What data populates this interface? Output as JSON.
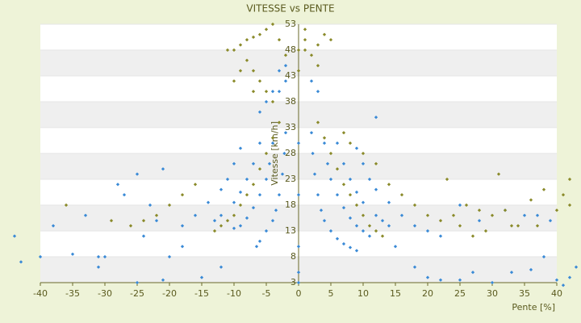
{
  "chart_data": {
    "type": "scatter",
    "title": "VITESSE vs PENTE",
    "x_label": "Pente [%]",
    "y_label": "Vitesse [km/h]",
    "xlim": [
      -40,
      40
    ],
    "xticks": [
      -40,
      -35,
      -30,
      -25,
      -20,
      -15,
      -10,
      -5,
      0,
      5,
      10,
      15,
      20,
      25,
      30,
      35,
      40
    ],
    "ylim": [
      3,
      53
    ],
    "yticks": [
      3,
      8,
      13,
      18,
      23,
      28,
      33,
      38,
      43,
      48,
      53
    ],
    "grid": true,
    "series": [
      {
        "color": "#3a8ad6",
        "x": [
          2,
          2.2,
          2.5,
          3,
          3.5,
          4,
          5,
          6,
          7,
          8,
          9,
          4,
          4.5,
          5,
          6,
          7,
          8,
          9,
          10,
          11,
          6,
          7,
          8,
          9,
          10,
          12,
          13,
          14,
          9,
          10,
          11,
          12,
          14,
          16,
          18,
          20,
          12,
          15,
          18,
          20,
          22,
          25,
          27,
          30,
          33,
          36,
          38,
          40,
          41,
          42,
          43,
          22,
          25,
          28,
          32,
          35,
          37,
          39,
          -2,
          -2.2,
          -2.5,
          -3,
          -3.5,
          -4,
          -5,
          -6,
          -6.5,
          -4,
          -4.5,
          -5,
          -6,
          -7,
          -8,
          -9,
          -10,
          -6,
          -7,
          -8,
          -9,
          -10,
          -12,
          -13,
          -9,
          -10,
          -11,
          -12,
          -14,
          -16,
          -18,
          -2,
          -3,
          -4,
          -5,
          -6,
          -3,
          -2,
          2,
          3,
          -44,
          -43,
          -40,
          -38,
          -35,
          -33,
          -31,
          -31,
          -30,
          -28,
          -25,
          -25,
          -24,
          -22,
          -21,
          -21,
          -20,
          -18,
          -15,
          -12,
          -27,
          -23,
          0,
          0,
          0,
          0,
          0
        ],
        "values": [
          32,
          28,
          24,
          20,
          17,
          15,
          13,
          11.5,
          10.5,
          9.8,
          9.2,
          30,
          26,
          23,
          20,
          17.5,
          15.5,
          14,
          13,
          12,
          30,
          26,
          23,
          20.5,
          18.5,
          16,
          15,
          14,
          29,
          26,
          23,
          21,
          18.5,
          16,
          14,
          13,
          35,
          10,
          6,
          4,
          3.5,
          3.5,
          5,
          3,
          5,
          5.5,
          8,
          3.5,
          2.5,
          4,
          6,
          12,
          18,
          15,
          17,
          16,
          16,
          15,
          32,
          28,
          24,
          20,
          17,
          15,
          13,
          11,
          10,
          30,
          26,
          23,
          20,
          17.5,
          15.5,
          14,
          13.5,
          30,
          26,
          23,
          20.5,
          18.5,
          16,
          15,
          29,
          26,
          23,
          21,
          18.5,
          16,
          14,
          45,
          44,
          40,
          38,
          36,
          40,
          42,
          42,
          40,
          12,
          7,
          8,
          14,
          8.5,
          16,
          6,
          8,
          8,
          22,
          24,
          3,
          12,
          15,
          25,
          3.5,
          8,
          10,
          4,
          6,
          20,
          18,
          3,
          5,
          10,
          20,
          30
        ]
      },
      {
        "color": "#8a8a2a",
        "x": [
          -11,
          -10,
          -9,
          -8,
          -7,
          -6,
          -5,
          -4,
          -3,
          -2,
          -8,
          -7,
          -6,
          -5,
          -4,
          -9,
          -10,
          -7,
          1,
          1,
          1,
          2,
          3,
          4,
          3,
          5,
          0,
          0,
          -3,
          -4,
          -5,
          -6,
          -7,
          -8,
          -9,
          -10,
          -11,
          -12,
          -13,
          -16,
          -18,
          -20,
          -22,
          -24,
          -26,
          -29,
          3,
          4,
          5,
          6,
          7,
          8,
          9,
          10,
          11,
          12,
          13,
          7,
          8,
          10,
          12,
          14,
          16,
          18,
          20,
          22,
          24,
          26,
          28,
          30,
          32,
          34,
          36,
          38,
          40,
          41,
          42,
          42,
          31,
          23,
          25,
          27,
          29,
          33,
          37,
          -36
        ],
        "values": [
          48,
          48,
          49,
          50,
          50.5,
          51,
          52,
          53,
          50,
          47,
          46,
          44,
          42,
          40,
          38,
          44,
          42,
          40,
          52,
          50,
          48,
          47,
          45,
          51,
          49,
          50,
          44,
          48,
          34,
          31,
          28,
          25,
          22,
          20,
          18,
          16,
          15,
          14,
          13,
          22,
          20,
          18,
          16,
          15,
          14,
          15,
          34,
          31,
          28,
          25,
          22,
          20,
          18,
          16,
          14,
          13,
          12,
          32,
          30,
          28,
          26,
          22,
          20,
          18,
          16,
          15,
          16,
          18,
          17,
          16,
          17,
          14,
          19,
          21,
          17,
          20,
          23,
          18,
          24,
          23,
          14,
          12,
          13,
          14,
          14,
          18
        ]
      }
    ]
  }
}
